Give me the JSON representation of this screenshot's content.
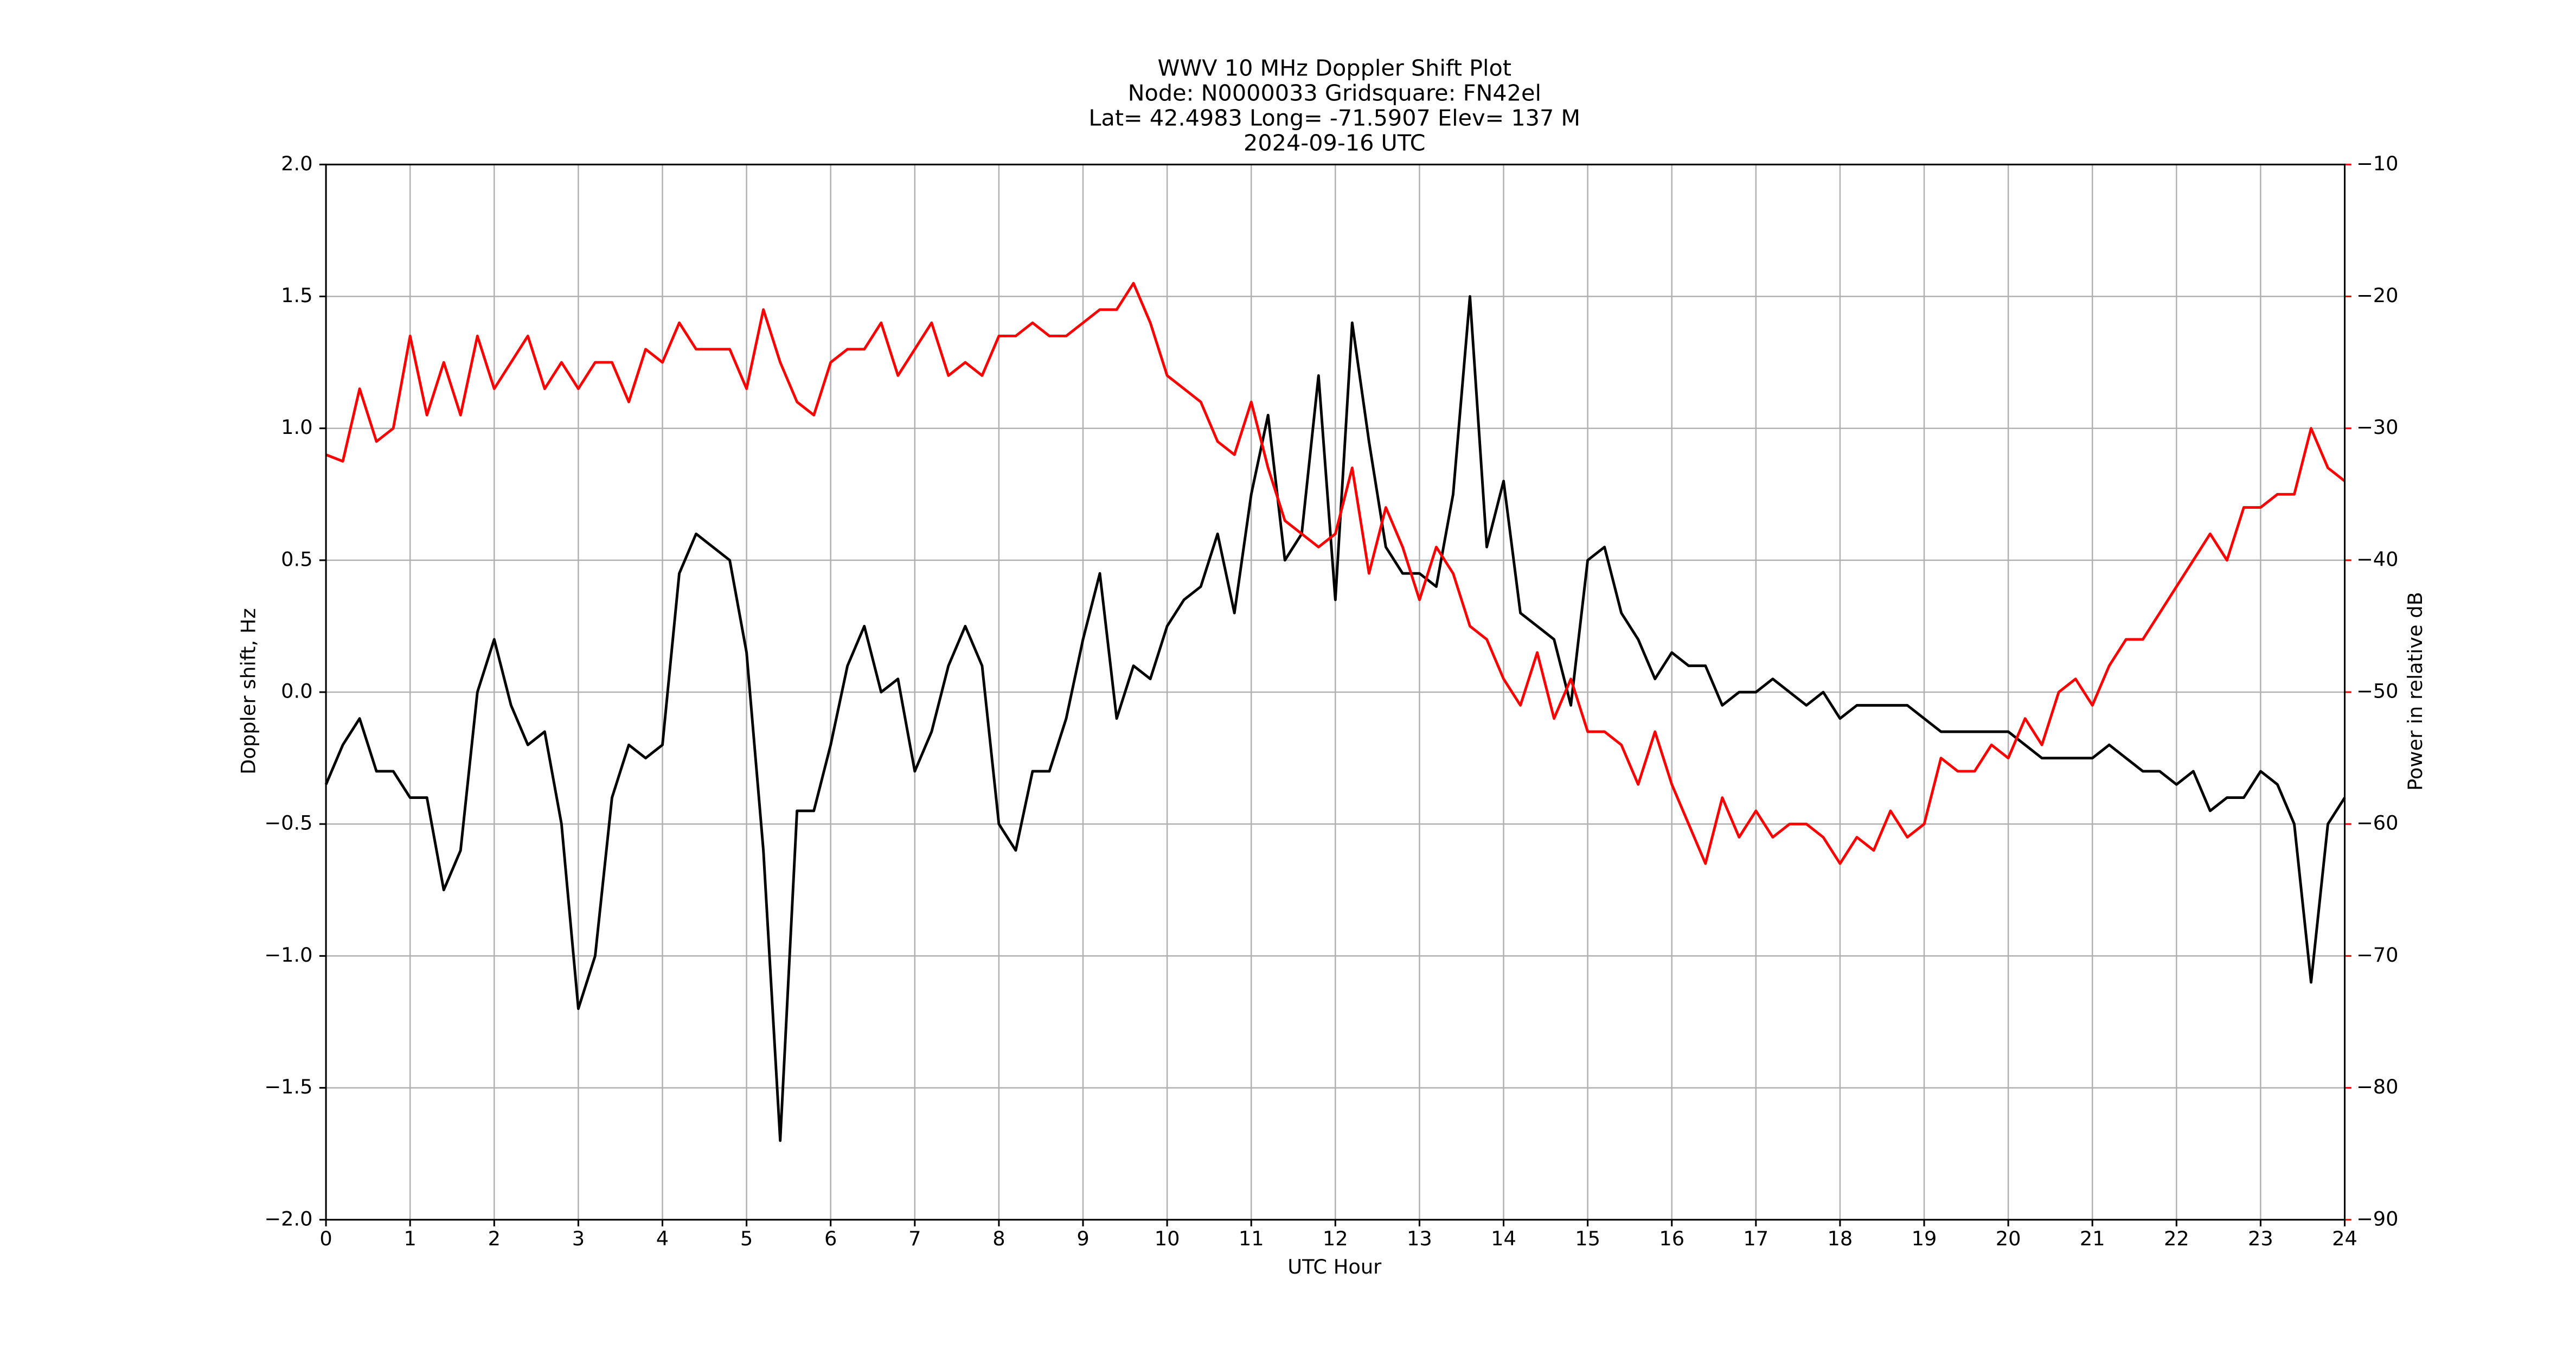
{
  "chart_data": {
    "type": "line",
    "title": [
      "WWV 10 MHz Doppler Shift Plot",
      "Node:  N0000033     Gridsquare:  FN42el",
      "Lat= 42.4983    Long= -71.5907    Elev= 137 M",
      "2024-09-16  UTC"
    ],
    "x_label": "UTC Hour",
    "y_label": "Doppler shift, Hz",
    "y2_label": "Power in relative dB",
    "x": [
      0,
      0.2,
      0.4,
      0.6,
      0.8,
      1,
      1.2,
      1.4,
      1.6,
      1.8,
      2,
      2.2,
      2.4,
      2.6,
      2.8,
      3,
      3.2,
      3.4,
      3.6,
      3.8,
      4,
      4.2,
      4.4,
      4.6,
      4.8,
      5,
      5.2,
      5.4,
      5.6,
      5.8,
      6,
      6.2,
      6.4,
      6.6,
      6.8,
      7,
      7.2,
      7.4,
      7.6,
      7.8,
      8,
      8.2,
      8.4,
      8.6,
      8.8,
      9,
      9.2,
      9.4,
      9.6,
      9.8,
      10,
      10.2,
      10.4,
      10.6,
      10.8,
      11,
      11.2,
      11.4,
      11.6,
      11.8,
      12,
      12.2,
      12.4,
      12.6,
      12.8,
      13,
      13.2,
      13.4,
      13.6,
      13.8,
      14,
      14.2,
      14.4,
      14.6,
      14.8,
      15,
      15.2,
      15.4,
      15.6,
      15.8,
      16,
      16.2,
      16.4,
      16.6,
      16.8,
      17,
      17.2,
      17.4,
      17.6,
      17.8,
      18,
      18.2,
      18.4,
      18.6,
      18.8,
      19,
      19.2,
      19.4,
      19.6,
      19.8,
      20,
      20.2,
      20.4,
      20.6,
      20.8,
      21,
      21.2,
      21.4,
      21.6,
      21.8,
      22,
      22.2,
      22.4,
      22.6,
      22.8,
      23,
      23.2,
      23.4,
      23.6,
      23.8,
      24
    ],
    "series": [
      {
        "color": "#000000",
        "axis": "y",
        "values": [
          -0.35,
          -0.2,
          -0.1,
          -0.3,
          -0.3,
          -0.4,
          -0.4,
          -0.75,
          -0.6,
          0.0,
          0.2,
          -0.05,
          -0.2,
          -0.15,
          -0.5,
          -1.2,
          -1.0,
          -0.4,
          -0.2,
          -0.25,
          -0.2,
          0.45,
          0.6,
          0.55,
          0.5,
          0.15,
          -0.6,
          -1.7,
          -0.45,
          -0.45,
          -0.2,
          0.1,
          0.25,
          0.0,
          0.05,
          -0.3,
          -0.15,
          0.1,
          0.25,
          0.1,
          -0.5,
          -0.6,
          -0.3,
          -0.3,
          -0.1,
          0.2,
          0.45,
          -0.1,
          0.1,
          0.05,
          0.25,
          0.35,
          0.4,
          0.6,
          0.3,
          0.75,
          1.05,
          0.5,
          0.6,
          1.2,
          0.35,
          1.4,
          0.95,
          0.55,
          0.45,
          0.45,
          0.4,
          0.75,
          1.5,
          0.55,
          0.8,
          0.3,
          0.25,
          0.2,
          -0.05,
          0.5,
          0.55,
          0.3,
          0.2,
          0.05,
          0.15,
          0.1,
          0.1,
          -0.05,
          0.0,
          0.0,
          0.05,
          0.0,
          -0.05,
          0.0,
          -0.1,
          -0.05,
          -0.05,
          -0.05,
          -0.05,
          -0.1,
          -0.15,
          -0.15,
          -0.15,
          -0.15,
          -0.15,
          -0.2,
          -0.25,
          -0.25,
          -0.25,
          -0.25,
          -0.2,
          -0.25,
          -0.3,
          -0.3,
          -0.35,
          -0.3,
          -0.45,
          -0.4,
          -0.4,
          -0.3,
          -0.35,
          -0.5,
          -1.1,
          -0.5,
          -0.4
        ]
      },
      {
        "color": "#ff0000",
        "axis": "y2",
        "values": [
          -32,
          -32.5,
          -27,
          -31,
          -30,
          -23,
          -29,
          -25,
          -29,
          -23,
          -27,
          -25,
          -23,
          -27,
          -25,
          -27,
          -25,
          -25,
          -28,
          -24,
          -25,
          -22,
          -24,
          -24,
          -24,
          -27,
          -21,
          -25,
          -28,
          -29,
          -25,
          -24,
          -24,
          -22,
          -26,
          -24,
          -22,
          -26,
          -25,
          -26,
          -23,
          -23,
          -22,
          -23,
          -23,
          -22,
          -21,
          -21,
          -19,
          -22,
          -26,
          -27,
          -28,
          -31,
          -32,
          -28,
          -33,
          -37,
          -38,
          -39,
          -38,
          -33,
          -41,
          -36,
          -39,
          -43,
          -39,
          -41,
          -45,
          -46,
          -49,
          -51,
          -47,
          -52,
          -49,
          -53,
          -53,
          -54,
          -57,
          -53,
          -57,
          -60,
          -63,
          -58,
          -61,
          -59,
          -61,
          -60,
          -60,
          -61,
          -63,
          -61,
          -62,
          -59,
          -61,
          -60,
          -55,
          -56,
          -56,
          -54,
          -55,
          -52,
          -54,
          -50,
          -49,
          -51,
          -48,
          -46,
          -46,
          -44,
          -42,
          -40,
          -38,
          -40,
          -36,
          -36,
          -35,
          -35,
          -30,
          -33,
          -34
        ]
      }
    ],
    "xlim": [
      0,
      24
    ],
    "xticks": [
      0,
      1,
      2,
      3,
      4,
      5,
      6,
      7,
      8,
      9,
      10,
      11,
      12,
      13,
      14,
      15,
      16,
      17,
      18,
      19,
      20,
      21,
      22,
      23,
      24
    ],
    "ylim": [
      -2.0,
      2.0
    ],
    "yticks": [
      {
        "value": -2.0,
        "label": "−2.0"
      },
      {
        "value": -1.5,
        "label": "−1.5"
      },
      {
        "value": -1.0,
        "label": "−1.0"
      },
      {
        "value": -0.5,
        "label": "−0.5"
      },
      {
        "value": 0.0,
        "label": "0.0"
      },
      {
        "value": 0.5,
        "label": "0.5"
      },
      {
        "value": 1.0,
        "label": "1.0"
      },
      {
        "value": 1.5,
        "label": "1.5"
      },
      {
        "value": 2.0,
        "label": "2.0"
      }
    ],
    "y2lim": [
      -90,
      -10
    ],
    "y2ticks": [
      {
        "value": -90,
        "label": "−90"
      },
      {
        "value": -80,
        "label": "−80"
      },
      {
        "value": -70,
        "label": "−70"
      },
      {
        "value": -60,
        "label": "−60"
      },
      {
        "value": -50,
        "label": "−50"
      },
      {
        "value": -40,
        "label": "−40"
      },
      {
        "value": -30,
        "label": "−30"
      },
      {
        "value": -20,
        "label": "−20"
      },
      {
        "value": -10,
        "label": "−10"
      }
    ],
    "y2_color": "#ff0000",
    "grid": true
  }
}
